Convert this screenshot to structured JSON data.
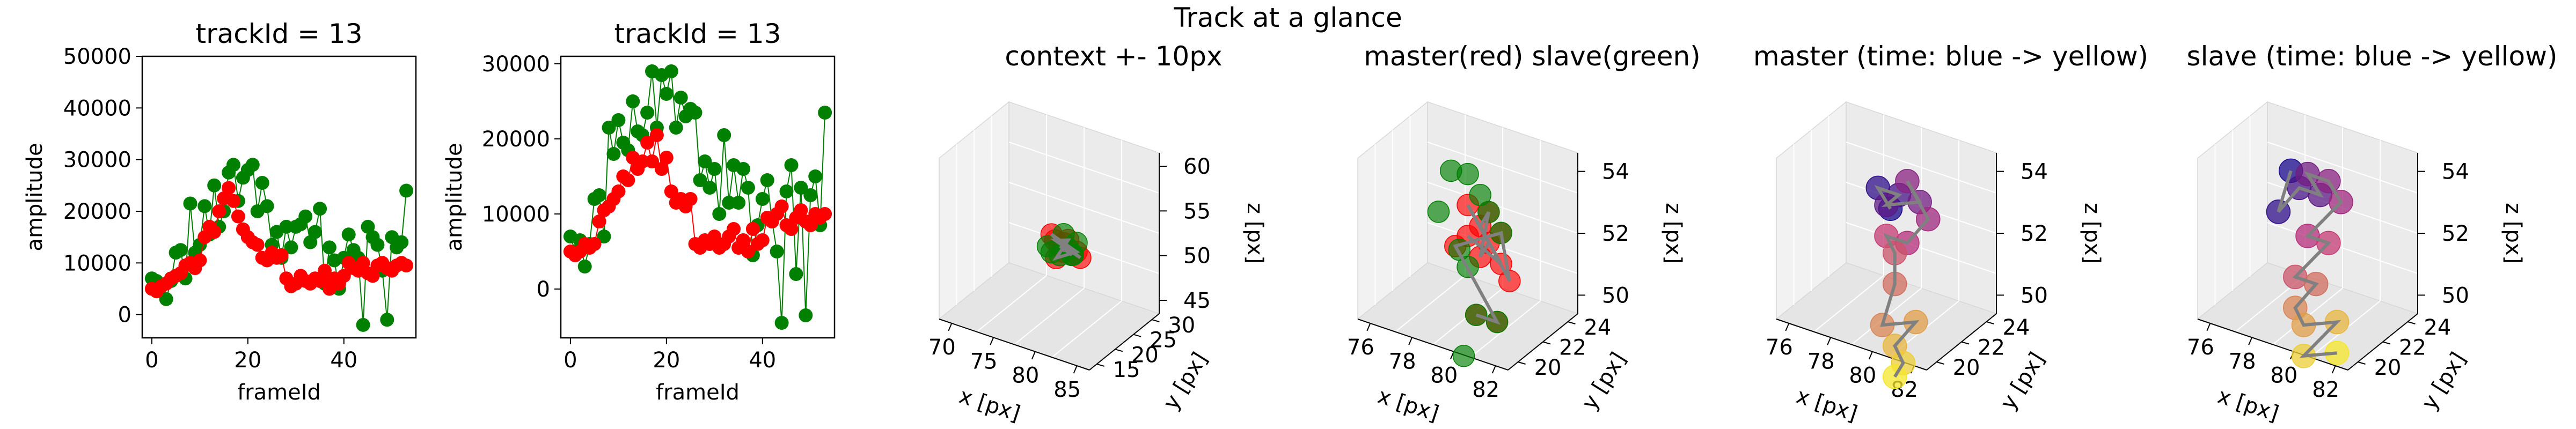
{
  "suptitle": "Track at a glance",
  "colors": {
    "master": "#ff0000",
    "slave": "#008000",
    "track_line": "#808080",
    "time_start": "#1a0a8c",
    "time_mid": "#c0307a",
    "time_end": "#f5e62a"
  },
  "chart_data": [
    {
      "type": "line",
      "title": "trackId = 13",
      "xlabel": "frameId",
      "ylabel": "amplitude",
      "xlim": [
        -2,
        55
      ],
      "ylim": [
        -4500,
        50000
      ],
      "xticks": [
        0,
        20,
        40
      ],
      "yticks": [
        0,
        10000,
        20000,
        30000,
        40000,
        50000
      ],
      "markers": "circles with thin connecting line",
      "series": [
        {
          "color": "#008000",
          "x": [
            0,
            1,
            2,
            3,
            4,
            5,
            6,
            7,
            8,
            9,
            10,
            11,
            12,
            13,
            14,
            15,
            16,
            17,
            18,
            19,
            20,
            21,
            22,
            23,
            24,
            25,
            26,
            27,
            28,
            29,
            30,
            31,
            32,
            33,
            34,
            35,
            36,
            37,
            38,
            39,
            40,
            41,
            42,
            43,
            44,
            45,
            46,
            47,
            48,
            49,
            50,
            51,
            52,
            53
          ],
          "values": [
            7000,
            6500,
            5500,
            3000,
            6500,
            12000,
            12500,
            7000,
            21500,
            12000,
            13500,
            21000,
            15500,
            25000,
            17000,
            20000,
            27500,
            29000,
            22000,
            26500,
            28000,
            29000,
            20000,
            25500,
            21000,
            13500,
            16000,
            11000,
            17000,
            13000,
            17000,
            17500,
            19000,
            14000,
            16000,
            20500,
            6000,
            13000,
            10500,
            5000,
            11000,
            15500,
            12500,
            11000,
            -2000,
            17000,
            15000,
            13500,
            8500,
            -1000,
            15000,
            13000,
            14000,
            24000
          ]
        },
        {
          "color": "#ff0000",
          "x": [
            0,
            1,
            2,
            3,
            4,
            5,
            6,
            7,
            8,
            9,
            10,
            11,
            12,
            13,
            14,
            15,
            16,
            17,
            18,
            19,
            20,
            21,
            22,
            23,
            24,
            25,
            26,
            27,
            28,
            29,
            30,
            31,
            32,
            33,
            34,
            35,
            36,
            37,
            38,
            39,
            40,
            41,
            42,
            43,
            44,
            45,
            46,
            47,
            48,
            49,
            50,
            51,
            52,
            53
          ],
          "values": [
            5000,
            4500,
            5500,
            6000,
            7000,
            7500,
            8000,
            9500,
            10000,
            9000,
            10500,
            15000,
            17000,
            16000,
            20000,
            22500,
            24500,
            22000,
            19000,
            16500,
            15000,
            14000,
            13500,
            11000,
            10500,
            12000,
            11000,
            11500,
            7000,
            5500,
            6000,
            7500,
            6500,
            6000,
            7000,
            6500,
            8500,
            5000,
            7000,
            6000,
            7500,
            10000,
            9000,
            8500,
            10000,
            8000,
            7500,
            9500,
            10000,
            9000,
            8500,
            9500,
            10000,
            9500
          ]
        }
      ]
    },
    {
      "type": "line",
      "title": "trackId = 13",
      "xlabel": "frameId",
      "ylabel": "amplitude",
      "xlim": [
        -2,
        55
      ],
      "ylim": [
        -6500,
        31000
      ],
      "xticks": [
        0,
        20,
        40
      ],
      "yticks": [
        0,
        10000,
        20000,
        30000
      ],
      "markers": "circles with thin connecting line",
      "series": [
        {
          "color": "#008000",
          "x": [
            0,
            1,
            2,
            3,
            4,
            5,
            6,
            7,
            8,
            9,
            10,
            11,
            12,
            13,
            14,
            15,
            16,
            17,
            18,
            19,
            20,
            21,
            22,
            23,
            24,
            25,
            26,
            27,
            28,
            29,
            30,
            31,
            32,
            33,
            34,
            35,
            36,
            37,
            38,
            39,
            40,
            41,
            42,
            43,
            44,
            45,
            46,
            47,
            48,
            49,
            50,
            51,
            52,
            53
          ],
          "values": [
            7000,
            5000,
            6500,
            3000,
            6000,
            12000,
            12500,
            7000,
            21500,
            18000,
            22500,
            19500,
            18500,
            25000,
            21000,
            20500,
            23500,
            29000,
            21500,
            28500,
            26000,
            29000,
            21500,
            25500,
            23000,
            24000,
            23500,
            14500,
            17000,
            13500,
            16000,
            10000,
            20500,
            11500,
            16500,
            11500,
            16000,
            13500,
            4500,
            8500,
            12000,
            14500,
            9000,
            5000,
            -4500,
            13000,
            16500,
            2000,
            13500,
            -3500,
            12500,
            15000,
            8500,
            23500
          ]
        },
        {
          "color": "#ff0000",
          "x": [
            0,
            1,
            2,
            3,
            4,
            5,
            6,
            7,
            8,
            9,
            10,
            11,
            12,
            13,
            14,
            15,
            16,
            17,
            18,
            19,
            20,
            21,
            22,
            23,
            24,
            25,
            26,
            27,
            28,
            29,
            30,
            31,
            32,
            33,
            34,
            35,
            36,
            37,
            38,
            39,
            40,
            41,
            42,
            43,
            44,
            45,
            46,
            47,
            48,
            49,
            50,
            51,
            52,
            53
          ],
          "values": [
            5000,
            4500,
            5000,
            6000,
            5500,
            6000,
            9000,
            10500,
            11000,
            12000,
            13000,
            15000,
            14500,
            17500,
            16000,
            17000,
            19500,
            17000,
            20500,
            16000,
            17500,
            13000,
            11500,
            12000,
            11000,
            12000,
            6000,
            5500,
            6500,
            6000,
            7000,
            5500,
            6000,
            7000,
            8000,
            5500,
            6500,
            5000,
            8000,
            6000,
            6500,
            9500,
            9000,
            10000,
            11000,
            8500,
            8000,
            9500,
            10500,
            9000,
            8500,
            10000,
            9500,
            10000
          ]
        }
      ]
    },
    {
      "type": "scatter3d",
      "title": "context +- 10px",
      "xlabel": "x [px]",
      "ylabel": "y [px]",
      "zlabel": "z [px]",
      "xticks": [
        70,
        75,
        80,
        85
      ],
      "yticks": [
        15,
        20,
        25,
        30
      ],
      "zticks": [
        45,
        50,
        55,
        60
      ],
      "series": [
        {
          "name": "master",
          "color": "#ff0000",
          "points": [
            [
              79,
              22,
              52
            ],
            [
              80,
              23,
              51
            ],
            [
              78,
              22,
              53
            ],
            [
              81,
              22,
              52
            ],
            [
              79,
              21,
              51
            ],
            [
              80,
              22,
              53
            ],
            [
              78,
              23,
              52
            ],
            [
              81,
              23,
              51
            ],
            [
              79,
              23,
              52
            ],
            [
              80,
              21,
              52
            ]
          ]
        },
        {
          "name": "slave",
          "color": "#008000",
          "points": [
            [
              79,
              22,
              51
            ],
            [
              80,
              22,
              52
            ],
            [
              78,
              21,
              52
            ],
            [
              81,
              22,
              53
            ],
            [
              79,
              23,
              53
            ],
            [
              80,
              23,
              51
            ],
            [
              78,
              22,
              51
            ],
            [
              81,
              21,
              52
            ]
          ]
        }
      ]
    },
    {
      "type": "scatter3d",
      "title": "master(red) slave(green)",
      "xlabel": "x [px]",
      "ylabel": "y [px]",
      "zlabel": "z [px]",
      "xticks": [
        76,
        78,
        80,
        82
      ],
      "yticks": [
        20,
        22,
        24
      ],
      "zticks": [
        50,
        52,
        54
      ],
      "series": [
        {
          "name": "master",
          "color": "#ff0000",
          "points": [
            [
              79,
              22,
              52
            ],
            [
              80,
              23,
              51
            ],
            [
              79,
              22,
              53
            ],
            [
              80,
              22,
              52
            ],
            [
              79,
              23,
              51
            ],
            [
              80,
              22,
              53
            ],
            [
              79,
              23,
              52
            ],
            [
              81,
              22,
              51
            ],
            [
              80,
              23,
              52
            ],
            [
              79,
              21,
              52
            ],
            [
              81,
              21,
              50
            ],
            [
              80,
              21,
              50
            ]
          ]
        },
        {
          "name": "slave",
          "color": "#008000",
          "points": [
            [
              77,
              24,
              53
            ],
            [
              77,
              23,
              52
            ],
            [
              78,
              23,
              51
            ],
            [
              79,
              22,
              51
            ],
            [
              80,
              22,
              53
            ],
            [
              79,
              22,
              54
            ],
            [
              80,
              21,
              50
            ],
            [
              80,
              20,
              49
            ],
            [
              81,
              21,
              50
            ],
            [
              80,
              23,
              52
            ],
            [
              79,
              23,
              53
            ]
          ]
        }
      ]
    },
    {
      "type": "scatter3d",
      "title": "master (time: blue -> yellow)",
      "xlabel": "x [px]",
      "ylabel": "y [px]",
      "zlabel": "z [px]",
      "xticks": [
        76,
        78,
        80,
        82
      ],
      "yticks": [
        20,
        22,
        24
      ],
      "zticks": [
        50,
        52,
        54
      ],
      "points": [
        [
          78,
          24,
          52
        ],
        [
          78,
          23,
          53
        ],
        [
          79,
          23,
          53
        ],
        [
          79,
          22,
          53
        ],
        [
          80,
          23,
          53
        ],
        [
          80,
          22,
          54
        ],
        [
          81,
          22,
          53
        ],
        [
          80,
          22,
          52
        ],
        [
          79,
          22,
          52
        ],
        [
          80,
          21,
          52
        ],
        [
          80,
          21,
          51
        ],
        [
          80,
          20,
          50
        ],
        [
          81,
          21,
          50
        ],
        [
          80,
          21,
          49
        ],
        [
          81,
          20,
          49
        ],
        [
          80,
          21,
          48
        ]
      ]
    },
    {
      "type": "scatter3d",
      "title": "slave (time: blue -> yellow)",
      "xlabel": "x [px]",
      "ylabel": "y [px]",
      "zlabel": "z [px]",
      "xticks": [
        76,
        78,
        80,
        82
      ],
      "yticks": [
        20,
        22,
        24
      ],
      "zticks": [
        50,
        52,
        54
      ],
      "points": [
        [
          77,
          24,
          53
        ],
        [
          77,
          23,
          52
        ],
        [
          78,
          23,
          53
        ],
        [
          79,
          23,
          53
        ],
        [
          79,
          22,
          54
        ],
        [
          80,
          22,
          54
        ],
        [
          80,
          23,
          53
        ],
        [
          79,
          22,
          52
        ],
        [
          80,
          22,
          52
        ],
        [
          79,
          21,
          51
        ],
        [
          80,
          21,
          51
        ],
        [
          79,
          21,
          50
        ],
        [
          80,
          20,
          50
        ],
        [
          81,
          21,
          50
        ],
        [
          80,
          20,
          49
        ],
        [
          81,
          21,
          49
        ]
      ]
    }
  ]
}
